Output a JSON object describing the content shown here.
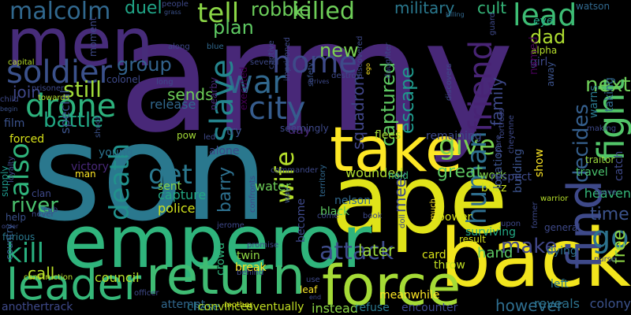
{
  "background": "#000000",
  "words": [
    {
      "text": "army",
      "color": "#482878"
    },
    {
      "text": "son",
      "color": "#2a788e"
    },
    {
      "text": "ape",
      "color": "#e0e319"
    },
    {
      "text": "back",
      "color": "#f2e51d"
    },
    {
      "text": "emperor",
      "color": "#2fb47c"
    },
    {
      "text": "men",
      "color": "#472c7a"
    },
    {
      "text": "take",
      "color": "#fde725"
    },
    {
      "text": "return",
      "color": "#3fbc73"
    },
    {
      "text": "force",
      "color": "#a5db36"
    },
    {
      "text": "find",
      "color": "#3e4989"
    },
    {
      "text": "leader",
      "color": "#35b779"
    },
    {
      "text": "fight",
      "color": "#52c569"
    },
    {
      "text": "soldier",
      "color": "#3b518b"
    },
    {
      "text": "home",
      "color": "#3e4a89"
    },
    {
      "text": "city",
      "color": "#365c8d"
    },
    {
      "text": "drone",
      "color": "#2db27d"
    },
    {
      "text": "war",
      "color": "#31688e"
    },
    {
      "text": "slave",
      "color": "#25858e"
    },
    {
      "text": "lead",
      "color": "#3dbc74"
    },
    {
      "text": "give",
      "color": "#7ad151"
    },
    {
      "text": "tell",
      "color": "#8bd646"
    },
    {
      "text": "malcolm",
      "color": "#31688e"
    },
    {
      "text": "death",
      "color": "#21918c"
    },
    {
      "text": "wife",
      "color": "#b5de2b"
    },
    {
      "text": "friend",
      "color": "#482475"
    },
    {
      "text": "get",
      "color": "#2a788e"
    },
    {
      "text": "attack",
      "color": "#3e4c8a"
    },
    {
      "text": "also",
      "color": "#2fb47c"
    },
    {
      "text": "kill",
      "color": "#29af7f"
    },
    {
      "text": "human",
      "color": "#2e6e8e"
    },
    {
      "text": "go",
      "color": "#2c728e"
    },
    {
      "text": "captured",
      "color": "#5ec962"
    },
    {
      "text": "river",
      "color": "#4ac16d"
    },
    {
      "text": "escape",
      "color": "#1f988b"
    },
    {
      "text": "killed",
      "color": "#6ece58"
    },
    {
      "text": "battle",
      "color": "#22a884"
    },
    {
      "text": "make",
      "color": "#404688"
    },
    {
      "text": "decides",
      "color": "#355f8d"
    },
    {
      "text": "next",
      "color": "#6ece58"
    },
    {
      "text": "time",
      "color": "#3b528b"
    },
    {
      "text": "still",
      "color": "#a0da39"
    },
    {
      "text": "group",
      "color": "#33638d"
    },
    {
      "text": "robbie",
      "color": "#6ccd5a"
    },
    {
      "text": "plan",
      "color": "#5ec962"
    },
    {
      "text": "new",
      "color": "#7ad151"
    },
    {
      "text": "dad",
      "color": "#addc30"
    },
    {
      "text": "barry",
      "color": "#2d708e"
    },
    {
      "text": "meet",
      "color": "#3f4889"
    },
    {
      "text": "great",
      "color": "#5ec962"
    },
    {
      "text": "family",
      "color": "#3e4989"
    },
    {
      "text": "squadron",
      "color": "#404588"
    },
    {
      "text": "free",
      "color": "#8fd744"
    },
    {
      "text": "sends",
      "color": "#6ece58"
    },
    {
      "text": "join",
      "color": "#3f4788"
    },
    {
      "text": "duel",
      "color": "#20a486"
    },
    {
      "text": "later",
      "color": "#9bd93c"
    },
    {
      "text": "military",
      "color": "#2a788e"
    },
    {
      "text": "cult",
      "color": "#35b779"
    },
    {
      "text": "call",
      "color": "#b8de29"
    },
    {
      "text": "hand",
      "color": "#5cc863"
    },
    {
      "text": "wounded",
      "color": "#addc30"
    },
    {
      "text": "however",
      "color": "#2e6d8e"
    },
    {
      "text": "reveals",
      "color": "#2c738e"
    },
    {
      "text": "instead",
      "color": "#8bd646"
    },
    {
      "text": "eventually",
      "color": "#c2df23"
    },
    {
      "text": "refuse",
      "color": "#2a788e"
    },
    {
      "text": "encounter",
      "color": "#3e4989"
    },
    {
      "text": "colony",
      "color": "#3b528b"
    },
    {
      "text": "capture",
      "color": "#22a884"
    },
    {
      "text": "police",
      "color": "#d0e11c"
    },
    {
      "text": "council",
      "color": "#b5de2b"
    },
    {
      "text": "water",
      "color": "#6ece58"
    },
    {
      "text": "sent",
      "color": "#86d549"
    },
    {
      "text": "young",
      "color": "#2c728e"
    },
    {
      "text": "day",
      "color": "#482878"
    },
    {
      "text": "pow",
      "color": "#a2da37"
    },
    {
      "text": "try",
      "color": "#3b528b"
    },
    {
      "text": "alone",
      "color": "#3e4989"
    },
    {
      "text": "flees",
      "color": "#a8db34"
    },
    {
      "text": "heaven",
      "color": "#35b779"
    },
    {
      "text": "travel",
      "color": "#4ac16d"
    },
    {
      "text": "traitor",
      "color": "#9bd93c"
    },
    {
      "text": "dying",
      "color": "#2d708e"
    },
    {
      "text": "left",
      "color": "#2a788e"
    },
    {
      "text": "card",
      "color": "#d8e219"
    },
    {
      "text": "throw",
      "color": "#c2df23"
    },
    {
      "text": "surviving",
      "color": "#22a884"
    },
    {
      "text": "work",
      "color": "#86d549"
    },
    {
      "text": "buzz",
      "color": "#c8e020"
    },
    {
      "text": "hold",
      "color": "#35b779"
    },
    {
      "text": "release",
      "color": "#31688e"
    },
    {
      "text": "capital",
      "color": "#b5de2b"
    },
    {
      "text": "colonel",
      "color": "#3e4989"
    },
    {
      "text": "film",
      "color": "#3b528b"
    },
    {
      "text": "forced",
      "color": "#d8e219"
    },
    {
      "text": "special",
      "color": "#3b528b"
    },
    {
      "text": "victory",
      "color": "#482878"
    },
    {
      "text": "man",
      "color": "#fde725"
    },
    {
      "text": "supply",
      "color": "#1f988b"
    },
    {
      "text": "help",
      "color": "#3b528b"
    },
    {
      "text": "furious",
      "color": "#2a788e"
    },
    {
      "text": "anothertrack",
      "color": "#3e4989"
    },
    {
      "text": "construction",
      "color": "#b5de2b"
    },
    {
      "text": "country",
      "color": "#355f8d"
    },
    {
      "text": "attempt",
      "color": "#31688e"
    },
    {
      "text": "chase",
      "color": "#2a788e"
    },
    {
      "text": "convinces",
      "color": "#b8de29"
    },
    {
      "text": "crowd",
      "color": "#2fb47c"
    },
    {
      "text": "twin",
      "color": "#8fd744"
    },
    {
      "text": "break",
      "color": "#fde725"
    },
    {
      "text": "become",
      "color": "#3e4989"
    },
    {
      "text": "meanwhile",
      "color": "#fde725"
    },
    {
      "text": "leaf",
      "color": "#fde725"
    },
    {
      "text": "nelson",
      "color": "#31688e"
    },
    {
      "text": "black",
      "color": "#5ec962"
    },
    {
      "text": "power",
      "color": "#d8e219"
    },
    {
      "text": "result",
      "color": "#d8e219"
    },
    {
      "text": "location",
      "color": "#3b528b"
    },
    {
      "text": "building",
      "color": "#3b528b"
    },
    {
      "text": "show",
      "color": "#fde725"
    },
    {
      "text": "respect",
      "color": "#3e4989"
    },
    {
      "text": "girl",
      "color": "#3e4989"
    },
    {
      "text": "eye",
      "color": "#22a884"
    },
    {
      "text": "watson",
      "color": "#31688e"
    },
    {
      "text": "alpha",
      "color": "#b5de2b"
    },
    {
      "text": "named",
      "color": "#440154"
    },
    {
      "text": "away",
      "color": "#3b528b"
    },
    {
      "text": "warns",
      "color": "#2a788e"
    },
    {
      "text": "taking",
      "color": "#31688e"
    },
    {
      "text": "making",
      "color": "#3e4989"
    },
    {
      "text": "killing",
      "color": "#31688e"
    },
    {
      "text": "guard",
      "color": "#3e4989"
    },
    {
      "text": "moment",
      "color": "#3e4989"
    },
    {
      "text": "people",
      "color": "#3e4989"
    },
    {
      "text": "grass",
      "color": "#3b528b"
    },
    {
      "text": "along",
      "color": "#3e4989"
    },
    {
      "text": "blue",
      "color": "#31688e"
    },
    {
      "text": "long",
      "color": "#3e4989"
    },
    {
      "text": "towards",
      "color": "#b5de2b"
    },
    {
      "text": "prisoner",
      "color": "#3e4989"
    },
    {
      "text": "child",
      "color": "#3e4989"
    },
    {
      "text": "begin",
      "color": "#3b528b"
    },
    {
      "text": "shoot",
      "color": "#3b528b"
    },
    {
      "text": "led",
      "color": "#3e4989"
    },
    {
      "text": "executed",
      "color": "#440154"
    },
    {
      "text": "nearby",
      "color": "#482878"
    },
    {
      "text": "captive",
      "color": "#3e4989"
    },
    {
      "text": "imprisoned",
      "color": "#3e4989"
    },
    {
      "text": "safety",
      "color": "#3b528b"
    },
    {
      "text": "arrives",
      "color": "#3e4989"
    },
    {
      "text": "destroy",
      "color": "#3e4989"
    },
    {
      "text": "discovered",
      "color": "#3e4989"
    },
    {
      "text": "remaining",
      "color": "#3e4989"
    },
    {
      "text": "daughter",
      "color": "#3e4989"
    },
    {
      "text": "ego",
      "color": "#fde725"
    },
    {
      "text": "discovers",
      "color": "#3e4989"
    },
    {
      "text": "seemingly",
      "color": "#3e4989"
    },
    {
      "text": "confronts",
      "color": "#3e4989"
    },
    {
      "text": "way",
      "color": "#3b528b"
    },
    {
      "text": "territory",
      "color": "#31688e"
    },
    {
      "text": "commander",
      "color": "#3e4989"
    },
    {
      "text": "several",
      "color": "#3e4989"
    },
    {
      "text": "clan",
      "color": "#3e4989"
    },
    {
      "text": "cub",
      "color": "#3e4989"
    },
    {
      "text": "never",
      "color": "#3e4989"
    },
    {
      "text": "order",
      "color": "#3e4989"
    },
    {
      "text": "loyalty",
      "color": "#3e4989"
    },
    {
      "text": "promise",
      "color": "#3e4989"
    },
    {
      "text": "behind",
      "color": "#3e4989"
    },
    {
      "text": "mother",
      "color": "#d8e219"
    },
    {
      "text": "officer",
      "color": "#3e4989"
    },
    {
      "text": "jerome",
      "color": "#3e4989"
    },
    {
      "text": "use",
      "color": "#3e4989"
    },
    {
      "text": "end",
      "color": "#3e4989"
    },
    {
      "text": "book",
      "color": "#3e4989"
    },
    {
      "text": "come",
      "color": "#3e4989"
    },
    {
      "text": "doll",
      "color": "#3e4989"
    },
    {
      "text": "much",
      "color": "#fde725"
    },
    {
      "text": "upon",
      "color": "#3e4989"
    },
    {
      "text": "general",
      "color": "#3e4989"
    },
    {
      "text": "former",
      "color": "#3e4989"
    },
    {
      "text": "warrior",
      "color": "#b5de2b"
    },
    {
      "text": "nurse",
      "color": "#3e4989"
    },
    {
      "text": "move",
      "color": "#3e4989"
    },
    {
      "text": "catch",
      "color": "#3e4989"
    },
    {
      "text": "spare",
      "color": "#3e4989"
    },
    {
      "text": "cheyenne",
      "color": "#3e4989"
    },
    {
      "text": "fortress",
      "color": "#3e4989"
    },
    {
      "text": "mission",
      "color": "#3e4989"
    },
    {
      "text": "serie",
      "color": "#3e4989"
    }
  ]
}
